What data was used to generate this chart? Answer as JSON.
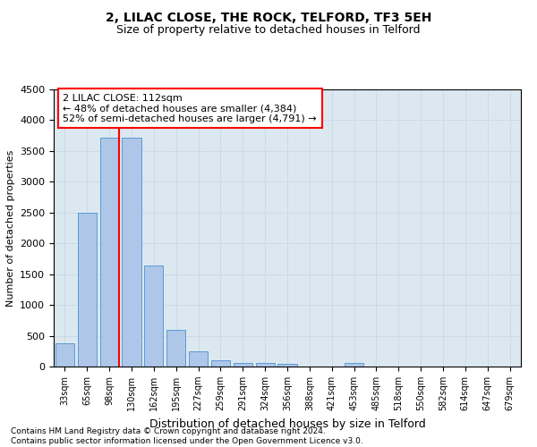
{
  "title": "2, LILAC CLOSE, THE ROCK, TELFORD, TF3 5EH",
  "subtitle": "Size of property relative to detached houses in Telford",
  "xlabel": "Distribution of detached houses by size in Telford",
  "ylabel": "Number of detached properties",
  "bar_color": "#aec6e8",
  "bar_edge_color": "#5b9bd5",
  "categories": [
    "33sqm",
    "65sqm",
    "98sqm",
    "130sqm",
    "162sqm",
    "195sqm",
    "227sqm",
    "259sqm",
    "291sqm",
    "324sqm",
    "356sqm",
    "388sqm",
    "421sqm",
    "453sqm",
    "485sqm",
    "518sqm",
    "550sqm",
    "582sqm",
    "614sqm",
    "647sqm",
    "679sqm"
  ],
  "values": [
    380,
    2500,
    3720,
    3720,
    1640,
    600,
    250,
    100,
    60,
    55,
    50,
    0,
    0,
    55,
    0,
    0,
    0,
    0,
    0,
    0,
    0
  ],
  "ylim": [
    0,
    4500
  ],
  "yticks": [
    0,
    500,
    1000,
    1500,
    2000,
    2500,
    3000,
    3500,
    4000,
    4500
  ],
  "annotation_text": "2 LILAC CLOSE: 112sqm\n← 48% of detached houses are smaller (4,384)\n52% of semi-detached houses are larger (4,791) →",
  "red_line_bin_index": 2,
  "footnote": "Contains HM Land Registry data © Crown copyright and database right 2024.\nContains public sector information licensed under the Open Government Licence v3.0.",
  "grid_color": "#ccd9e8",
  "background_color": "#dce8f0"
}
